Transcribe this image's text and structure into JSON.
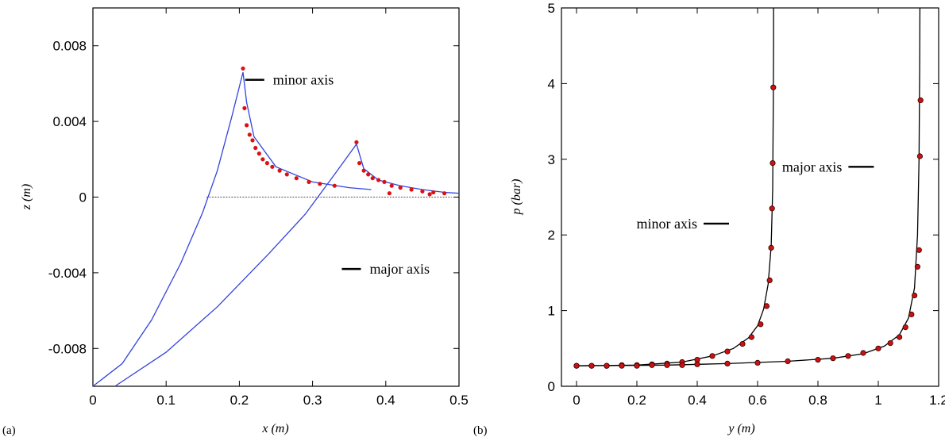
{
  "chart_data": [
    {
      "type": "line",
      "panel_label": "(a)",
      "xlabel": "x (m)",
      "ylabel": "z (m)",
      "xlim": [
        0,
        0.5
      ],
      "ylim": [
        -0.01,
        0.01
      ],
      "xticks": [
        0,
        0.1,
        0.2,
        0.3,
        0.4,
        0.5
      ],
      "xtick_labels": [
        "0",
        "0.1",
        "0.2",
        "0.3",
        "0.4",
        "0.5"
      ],
      "yticks": [
        -0.008,
        -0.004,
        0,
        0.004,
        0.008
      ],
      "ytick_labels": [
        "-0.008",
        "-0.004",
        "0",
        "0.004",
        "0.008"
      ],
      "colors": {
        "line": "#3344dd",
        "points": "#dd1111",
        "baseline": "#555555"
      },
      "series": [
        {
          "kind": "line",
          "x": [
            0.0,
            0.04,
            0.08,
            0.12,
            0.15,
            0.17,
            0.19,
            0.205,
            0.21,
            0.22,
            0.25,
            0.3,
            0.35,
            0.38
          ],
          "y": [
            -0.01,
            -0.0088,
            -0.0065,
            -0.0035,
            -0.0008,
            0.0014,
            0.0043,
            0.0066,
            0.005,
            0.0032,
            0.0016,
            0.0008,
            0.0005,
            0.0004
          ]
        },
        {
          "kind": "line",
          "x": [
            0.03,
            0.1,
            0.17,
            0.24,
            0.29,
            0.33,
            0.36,
            0.37,
            0.39,
            0.42,
            0.45,
            0.48,
            0.5
          ],
          "y": [
            -0.01,
            -0.0082,
            -0.0058,
            -0.003,
            -0.0009,
            0.0012,
            0.0028,
            0.0015,
            0.0009,
            0.0006,
            0.0004,
            0.00025,
            0.0002
          ]
        },
        {
          "kind": "points",
          "x": [
            0.205,
            0.207,
            0.21,
            0.214,
            0.218,
            0.222,
            0.227,
            0.232,
            0.238,
            0.245,
            0.255,
            0.265,
            0.278,
            0.295,
            0.31,
            0.33
          ],
          "y": [
            0.0068,
            0.0047,
            0.0038,
            0.0033,
            0.003,
            0.0026,
            0.0023,
            0.002,
            0.0018,
            0.0016,
            0.0014,
            0.0012,
            0.001,
            0.0008,
            0.0007,
            0.0006
          ]
        },
        {
          "kind": "points",
          "x": [
            0.36,
            0.364,
            0.37,
            0.376,
            0.382,
            0.39,
            0.398,
            0.408,
            0.42,
            0.435,
            0.45,
            0.465,
            0.48,
            0.405,
            0.46
          ],
          "y": [
            0.0029,
            0.0018,
            0.0014,
            0.0012,
            0.001,
            0.0009,
            0.0008,
            0.0006,
            0.0005,
            0.0004,
            0.0003,
            0.00025,
            0.0002,
            0.0002,
            0.00015
          ]
        },
        {
          "kind": "baseline",
          "x": [
            0.155,
            0.49
          ],
          "y": [
            0,
            0
          ]
        }
      ],
      "annotations": [
        {
          "text": "minor axis",
          "x": 0.208,
          "y": 0.0062
        },
        {
          "text": "major axis",
          "x": 0.34,
          "y": -0.0038
        }
      ]
    },
    {
      "type": "line",
      "panel_label": "(b)",
      "xlabel": "y (m)",
      "ylabel": "p (bar)",
      "xlim": [
        -0.05,
        1.2
      ],
      "ylim": [
        0,
        5
      ],
      "xticks": [
        0,
        0.2,
        0.4,
        0.6,
        0.8,
        1,
        1.2
      ],
      "xtick_labels": [
        "0",
        "0.2",
        "0.4",
        "0.6",
        "0.8",
        "1",
        "1.2"
      ],
      "yticks": [
        0,
        1,
        2,
        3,
        4,
        5
      ],
      "ytick_labels": [
        "0",
        "1",
        "2",
        "3",
        "4",
        "5"
      ],
      "colors": {
        "line": "#000000",
        "points": "#cc1111",
        "points_edge": "#330000"
      },
      "series": [
        {
          "kind": "line",
          "x": [
            0.0,
            0.2,
            0.35,
            0.45,
            0.52,
            0.57,
            0.6,
            0.62,
            0.635,
            0.645,
            0.65,
            0.652,
            0.653,
            0.653
          ],
          "y": [
            0.27,
            0.28,
            0.32,
            0.4,
            0.5,
            0.64,
            0.8,
            1.02,
            1.35,
            1.85,
            2.6,
            3.8,
            4.5,
            5.0
          ]
        },
        {
          "kind": "line",
          "x": [
            0.0,
            0.3,
            0.5,
            0.7,
            0.85,
            0.95,
            1.02,
            1.07,
            1.1,
            1.12,
            1.13,
            1.135,
            1.137,
            1.138
          ],
          "y": [
            0.27,
            0.28,
            0.3,
            0.33,
            0.37,
            0.43,
            0.53,
            0.68,
            0.9,
            1.3,
            2.0,
            3.0,
            4.2,
            5.0
          ]
        },
        {
          "kind": "points",
          "x": [
            0.0,
            0.05,
            0.1,
            0.15,
            0.2,
            0.25,
            0.3,
            0.35,
            0.4,
            0.45,
            0.5,
            0.55,
            0.58,
            0.61,
            0.63,
            0.64,
            0.645,
            0.648,
            0.65,
            0.652
          ],
          "y": [
            0.27,
            0.27,
            0.27,
            0.28,
            0.28,
            0.29,
            0.3,
            0.32,
            0.35,
            0.4,
            0.46,
            0.56,
            0.65,
            0.82,
            1.06,
            1.4,
            1.83,
            2.35,
            2.95,
            3.95
          ]
        },
        {
          "kind": "points",
          "x": [
            0.0,
            0.05,
            0.1,
            0.15,
            0.2,
            0.25,
            0.3,
            0.35,
            0.4,
            0.5,
            0.6,
            0.7,
            0.8,
            0.85,
            0.9,
            0.95,
            1.0,
            1.04,
            1.07,
            1.09,
            1.11,
            1.12,
            1.13,
            1.135,
            1.138,
            1.14
          ],
          "y": [
            0.27,
            0.27,
            0.27,
            0.27,
            0.27,
            0.28,
            0.28,
            0.28,
            0.29,
            0.3,
            0.31,
            0.33,
            0.35,
            0.37,
            0.4,
            0.44,
            0.5,
            0.57,
            0.65,
            0.78,
            0.95,
            1.2,
            1.58,
            1.8,
            3.04,
            3.78
          ]
        }
      ],
      "annotations": [
        {
          "text": "minor axis",
          "x": 0.5,
          "y": 2.15
        },
        {
          "text": "major axis",
          "x": 0.98,
          "y": 2.9
        }
      ]
    }
  ]
}
